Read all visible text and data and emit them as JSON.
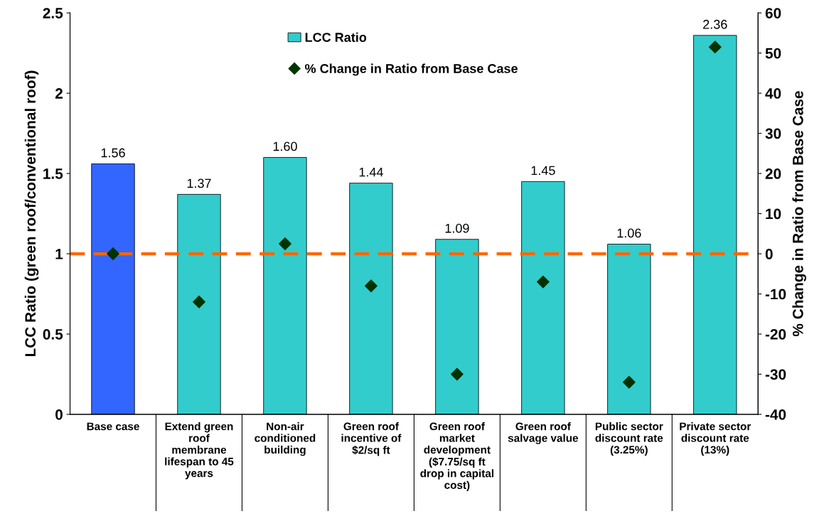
{
  "chart_data": {
    "type": "bar",
    "ylabel": "LCC Ratio (green roof/conventional roof)",
    "y2label": "% Change in Ratio from Base Case",
    "categories": [
      "Base case",
      "Extend green\nroof\nmembrane\nlifespan to 45\nyears",
      "Non-air\nconditioned\nbuilding",
      "Green roof\nincentive of\n$2/sq ft",
      "Green roof\nmarket\ndevelopment\n($7.75/sq ft\ndrop in capital\ncost)",
      "Green roof\nsalvage value",
      "Public sector\ndiscount rate\n(3.25%)",
      "Private sector\ndiscount rate\n(13%)"
    ],
    "series": [
      {
        "name": "LCC Ratio",
        "color": "#33cccc",
        "colors": [
          "#3366ff",
          "#33cccc",
          "#33cccc",
          "#33cccc",
          "#33cccc",
          "#33cccc",
          "#33cccc",
          "#33cccc"
        ],
        "values": [
          1.56,
          1.37,
          1.6,
          1.44,
          1.09,
          1.45,
          1.06,
          2.36
        ],
        "value_labels": [
          "1.56",
          "1.37",
          "1.60",
          "1.44",
          "1.09",
          "1.45",
          "1.06",
          "2.36"
        ]
      },
      {
        "name": "% Change in Ratio from Base Case",
        "type": "scatter",
        "axis": "y2",
        "color": "#003300",
        "marker": "diamond",
        "values": [
          0,
          -12,
          2.5,
          -8,
          -30,
          -7,
          -32,
          51.5
        ]
      }
    ],
    "ylim": [
      0,
      2.5
    ],
    "yticks": [
      0,
      0.5,
      1,
      1.5,
      2,
      2.5
    ],
    "y2lim": [
      -40,
      60
    ],
    "y2ticks": [
      -40,
      -30,
      -20,
      -10,
      0,
      10,
      20,
      30,
      40,
      50,
      60
    ],
    "ref_lines": [
      {
        "axis": "y",
        "value": 1,
        "color": "#ff6600",
        "line_style": "dashed"
      }
    ],
    "legend": "top",
    "grid": false
  }
}
